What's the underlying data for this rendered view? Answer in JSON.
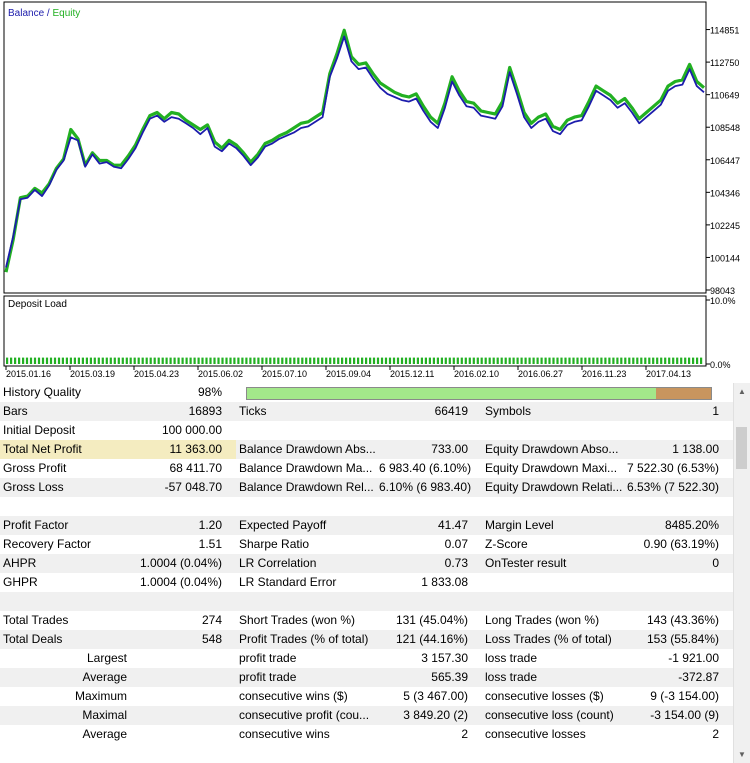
{
  "chart": {
    "legend_balance": "Balance",
    "legend_sep": " / ",
    "legend_equity": "Equity",
    "y_ticks": [
      "114851",
      "112750",
      "110649",
      "108548",
      "106447",
      "104346",
      "102245",
      "100144",
      "98043"
    ],
    "dates": [
      "2015.01.16",
      "2015.03.19",
      "2015.04.23",
      "2015.06.02",
      "2015.07.10",
      "2015.09.04",
      "2015.12.11",
      "2016.02.10",
      "2016.06.27",
      "2016.11.23",
      "2017.04.13"
    ],
    "deposit_load_label": "Deposit Load",
    "deposit_ticks": [
      "10.0%",
      "0.0%"
    ],
    "colors": {
      "balance": "#1c1cac",
      "equity": "#22b022",
      "axis": "#000000",
      "legend_balance": "#1c1cac",
      "legend_equity": "#22b022"
    }
  },
  "chart_data": {
    "type": "line",
    "title": "",
    "series": [
      {
        "name": "Balance",
        "values": [
          99500,
          101500,
          103900,
          104000,
          104500,
          104100,
          104800,
          105800,
          106400,
          107900,
          107700,
          106000,
          106800,
          106200,
          106300,
          106000,
          105900,
          106500,
          107200,
          108200,
          109100,
          109300,
          108900,
          109200,
          109100,
          108800,
          108500,
          108100,
          108500,
          107300,
          107000,
          107500,
          107200,
          106700,
          106100,
          106600,
          107300,
          107500,
          107800,
          108000,
          108200,
          108500,
          108600,
          108900,
          109200,
          111800,
          113000,
          114400,
          112800,
          112300,
          112400,
          111700,
          111100,
          110700,
          110500,
          110300,
          110200,
          110400,
          109600,
          108900,
          108500,
          109800,
          111500,
          110600,
          109900,
          109800,
          109300,
          109200,
          109100,
          109900,
          112100,
          110700,
          109200,
          108500,
          108900,
          109100,
          108300,
          108100,
          108700,
          108900,
          109000,
          109900,
          110900,
          110600,
          110300,
          109800,
          110100,
          109500,
          108800,
          109200,
          109600,
          110000,
          110900,
          111200,
          111300,
          112300,
          111200,
          110800
        ]
      },
      {
        "name": "Equity",
        "values": [
          99200,
          101300,
          104000,
          104100,
          104600,
          104300,
          104900,
          105900,
          106500,
          108400,
          107800,
          106100,
          106900,
          106400,
          106400,
          106100,
          106100,
          106700,
          107400,
          108400,
          109300,
          109500,
          109100,
          109500,
          109400,
          109000,
          108700,
          108400,
          108700,
          107600,
          107200,
          107700,
          107400,
          106900,
          106300,
          106800,
          107500,
          107700,
          108000,
          108200,
          108500,
          108800,
          108900,
          109200,
          109500,
          112000,
          113300,
          114800,
          113100,
          112600,
          112700,
          112000,
          111400,
          111100,
          110800,
          110600,
          110500,
          110700,
          109900,
          109200,
          108800,
          110100,
          111800,
          110900,
          110200,
          110100,
          109600,
          109500,
          109400,
          110200,
          112400,
          111000,
          109500,
          108800,
          109200,
          109400,
          108600,
          108400,
          109000,
          109200,
          109300,
          110200,
          111200,
          110900,
          110600,
          110100,
          110400,
          109800,
          109100,
          109500,
          109900,
          110300,
          111200,
          111500,
          111600,
          112600,
          111500,
          111100
        ]
      }
    ],
    "ylim": [
      98043,
      116500
    ],
    "deposit_load": {
      "ylim": [
        0,
        10.0
      ],
      "level": 1.0
    },
    "xlabel": "",
    "ylabel": "",
    "grid": false,
    "legend": "top-left"
  },
  "quality": {
    "label": "History Quality",
    "value": "98%",
    "fraction": 0.98,
    "colors": {
      "good": "#a3e88a",
      "bad": "#c8955e"
    }
  },
  "report": {
    "rows": [
      {
        "alt": true,
        "cells": [
          "Bars",
          "16893",
          "Ticks",
          "66419",
          "Symbols",
          "1"
        ]
      },
      {
        "alt": false,
        "cells": [
          "Initial Deposit",
          "100 000.00",
          "",
          "",
          "",
          ""
        ]
      },
      {
        "alt": true,
        "cells": [
          "Total Net Profit",
          "11 363.00",
          "Balance Drawdown Abs...",
          "733.00",
          "Equity Drawdown Abso...",
          "1 138.00"
        ],
        "highlight": true
      },
      {
        "alt": false,
        "cells": [
          "Gross Profit",
          "68 411.70",
          "Balance Drawdown Ma...",
          "6 983.40 (6.10%)",
          "Equity Drawdown Maxi...",
          "7 522.30 (6.53%)"
        ]
      },
      {
        "alt": true,
        "cells": [
          "Gross Loss",
          "-57 048.70",
          "Balance Drawdown Rel...",
          "6.10% (6 983.40)",
          "Equity Drawdown Relati...",
          "6.53% (7 522.30)"
        ]
      },
      {
        "alt": false,
        "cells": [
          "",
          "",
          "",
          "",
          "",
          ""
        ]
      },
      {
        "alt": true,
        "cells": [
          "Profit Factor",
          "1.20",
          "Expected Payoff",
          "41.47",
          "Margin Level",
          "8485.20%"
        ]
      },
      {
        "alt": false,
        "cells": [
          "Recovery Factor",
          "1.51",
          "Sharpe Ratio",
          "0.07",
          "Z-Score",
          "0.90 (63.19%)"
        ]
      },
      {
        "alt": true,
        "cells": [
          "AHPR",
          "1.0004 (0.04%)",
          "LR Correlation",
          "0.73",
          "OnTester result",
          "0"
        ]
      },
      {
        "alt": false,
        "cells": [
          "GHPR",
          "1.0004 (0.04%)",
          "LR Standard Error",
          "1 833.08",
          "",
          ""
        ]
      },
      {
        "alt": true,
        "cells": [
          "",
          "",
          "",
          "",
          "",
          ""
        ]
      },
      {
        "alt": false,
        "cells": [
          "Total Trades",
          "274",
          "Short Trades (won %)",
          "131 (45.04%)",
          "Long Trades (won %)",
          "143 (43.36%)"
        ]
      },
      {
        "alt": true,
        "cells": [
          "Total Deals",
          "548",
          "Profit Trades (% of total)",
          "121 (44.16%)",
          "Loss Trades (% of total)",
          "153 (55.84%)"
        ]
      },
      {
        "alt": false,
        "right": true,
        "cells": [
          "Largest",
          "",
          "profit trade",
          "3 157.30",
          "loss trade",
          "-1 921.00"
        ]
      },
      {
        "alt": true,
        "right": true,
        "cells": [
          "Average",
          "",
          "profit trade",
          "565.39",
          "loss trade",
          "-372.87"
        ]
      },
      {
        "alt": false,
        "right": true,
        "cells": [
          "Maximum",
          "",
          "consecutive wins ($)",
          "5 (3 467.00)",
          "consecutive losses ($)",
          "9 (-3 154.00)"
        ]
      },
      {
        "alt": true,
        "right": true,
        "cells": [
          "Maximal",
          "",
          "consecutive profit (cou...",
          "3 849.20 (2)",
          "consecutive loss (count)",
          "-3 154.00 (9)"
        ]
      },
      {
        "alt": false,
        "right": true,
        "cells": [
          "Average",
          "",
          "consecutive wins",
          "2",
          "consecutive losses",
          "2"
        ]
      }
    ]
  },
  "scrollbar": {
    "up_icon": "▲",
    "down_icon": "▼"
  }
}
